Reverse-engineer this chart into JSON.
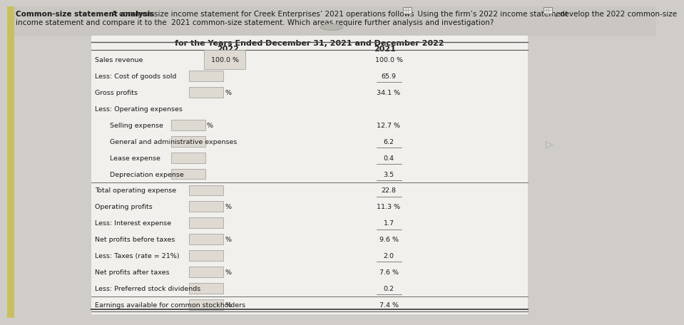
{
  "title_bold": "Common-size statement analysis",
  "title_rest": "  A common-size income statement for Creek Enterprises’ 2021 operations follows ",
  "title_mid": "  Using the firm’s 2022 income statement ",
  "title_end": " , develop the 2022 common-size",
  "line2": "income statement and compare it to the  2021 common-size statement. Which areas require further analysis and investigation?",
  "subtitle": "for the Years Ended December 31, 2021 and December 2022",
  "col_2022": "2022",
  "col_2021": "2021",
  "bg_color": "#d0cdc8",
  "table_bg": "#f2f0ec",
  "rows": [
    {
      "label": "Sales revenue",
      "val2022": "100.0 %",
      "val2021": "100.0 %",
      "indent": 0,
      "line_above": true,
      "box2022": false,
      "pct_after": false
    },
    {
      "label": "Less: Cost of goods sold",
      "val2022": "",
      "val2021": "65.9",
      "indent": 0,
      "line_above": false,
      "box2022": true,
      "pct_after": false
    },
    {
      "label": "Gross profits",
      "val2022": "",
      "val2021": "34.1 %",
      "indent": 0,
      "line_above": false,
      "box2022": true,
      "pct_after": true
    },
    {
      "label": "Less: Operating expenses",
      "val2022": "",
      "val2021": "",
      "indent": 0,
      "line_above": false,
      "box2022": false,
      "pct_after": false
    },
    {
      "label": "   Selling expense",
      "val2022": "",
      "val2021": "12.7 %",
      "indent": 1,
      "line_above": false,
      "box2022": true,
      "pct_after": true
    },
    {
      "label": "   General and administrative expenses",
      "val2022": "",
      "val2021": "6.2",
      "indent": 1,
      "line_above": false,
      "box2022": true,
      "pct_after": false
    },
    {
      "label": "   Lease expense",
      "val2022": "",
      "val2021": "0.4",
      "indent": 1,
      "line_above": false,
      "box2022": true,
      "pct_after": false
    },
    {
      "label": "   Depreciation expense",
      "val2022": "",
      "val2021": "3.5",
      "indent": 1,
      "line_above": false,
      "box2022": true,
      "pct_after": false
    },
    {
      "label": "Total operating expense",
      "val2022": "",
      "val2021": "22.8",
      "indent": 0,
      "line_above": true,
      "box2022": true,
      "pct_after": false
    },
    {
      "label": "Operating profits",
      "val2022": "",
      "val2021": "11.3 %",
      "indent": 0,
      "line_above": false,
      "box2022": true,
      "pct_after": true
    },
    {
      "label": "Less: Interest expense",
      "val2022": "",
      "val2021": "1.7",
      "indent": 0,
      "line_above": false,
      "box2022": true,
      "pct_after": false
    },
    {
      "label": "Net profits before taxes",
      "val2022": "",
      "val2021": "9.6 %",
      "indent": 0,
      "line_above": false,
      "box2022": true,
      "pct_after": true
    },
    {
      "label": "Less: Taxes (rate = 21%)",
      "val2022": "",
      "val2021": "2.0",
      "indent": 0,
      "line_above": false,
      "box2022": true,
      "pct_after": false
    },
    {
      "label": "Net profits after taxes",
      "val2022": "",
      "val2021": "7.6 %",
      "indent": 0,
      "line_above": false,
      "box2022": true,
      "pct_after": true
    },
    {
      "label": "Less: Preferred stock dividends",
      "val2022": "",
      "val2021": "0.2",
      "indent": 0,
      "line_above": false,
      "box2022": true,
      "pct_after": false
    },
    {
      "label": "Earnings available for common stockholders",
      "val2022": "",
      "val2021": "7.4 %",
      "indent": 0,
      "line_above": true,
      "box2022": true,
      "pct_after": true
    }
  ],
  "box_color": "#dedad2",
  "box_border": "#999999",
  "line_color": "#555555",
  "text_color": "#1a1a1a",
  "fs_title": 7.5,
  "fs_body": 6.8,
  "fs_sub": 8.0
}
